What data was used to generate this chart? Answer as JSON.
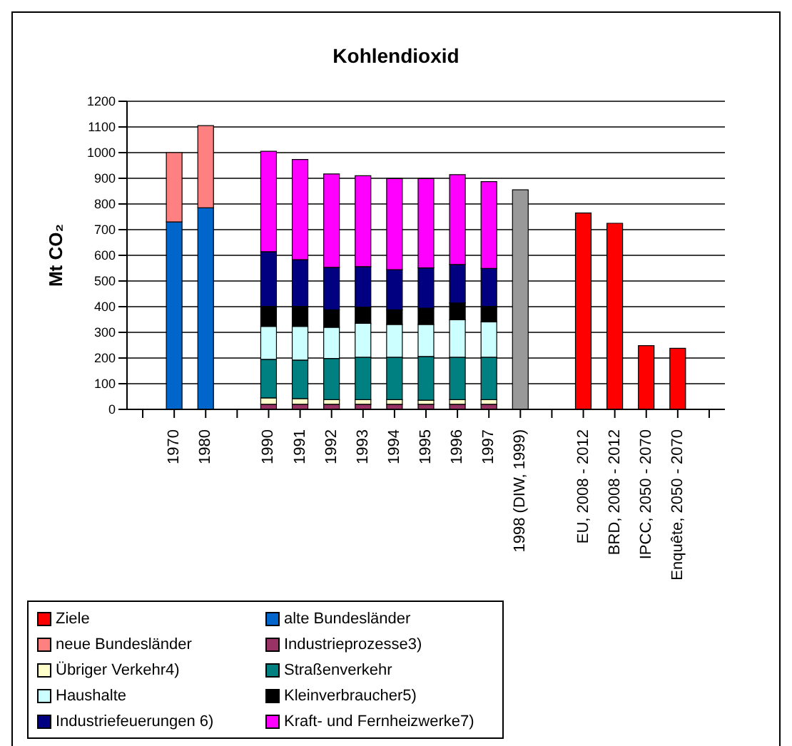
{
  "chart_data": {
    "type": "bar",
    "title": "Kohlendioxid",
    "ylabel": "Mt CO₂",
    "stacked": true,
    "categories": [
      null,
      "1970",
      "1980",
      null,
      "1990",
      "1991",
      "1992",
      "1993",
      "1994",
      "1995",
      "1996",
      "1997",
      "1998 (DIW, 1999)",
      null,
      "EU, 2008 - 2012",
      "BRD, 2008 - 2012",
      "IPCC, 2050 - 2070",
      "Enquête, 2050 - 2070",
      null
    ],
    "ylim": [
      0,
      1200
    ],
    "yticks": [
      0,
      100,
      200,
      300,
      400,
      500,
      600,
      700,
      800,
      900,
      1000,
      1100,
      1200
    ],
    "grid": "y",
    "legend": "bottom left",
    "series": [
      {
        "name": "Ziele",
        "color": "#ff0000",
        "values": [
          null,
          null,
          null,
          null,
          null,
          null,
          null,
          null,
          null,
          null,
          null,
          null,
          null,
          null,
          765,
          725,
          248,
          238,
          null
        ]
      },
      {
        "name": "alte Bundesländer",
        "color": "#0066cc",
        "values": [
          null,
          730,
          785,
          null,
          null,
          null,
          null,
          null,
          null,
          null,
          null,
          null,
          null,
          null,
          null,
          null,
          null,
          null,
          null
        ]
      },
      {
        "name": "neue Bundesländer",
        "color": "#ff8080",
        "values": [
          null,
          270,
          320,
          null,
          null,
          null,
          null,
          null,
          null,
          null,
          null,
          null,
          null,
          null,
          null,
          null,
          null,
          null,
          null
        ]
      },
      {
        "name": "Industrieprozesse3)",
        "color": "#993366",
        "values": [
          null,
          null,
          null,
          null,
          20,
          20,
          20,
          20,
          20,
          20,
          20,
          20,
          null,
          null,
          null,
          null,
          null,
          null,
          null
        ]
      },
      {
        "name": "Übriger Verkehr4)",
        "color": "#ffffcc",
        "values": [
          null,
          null,
          null,
          null,
          25,
          22,
          18,
          18,
          18,
          16,
          18,
          18,
          null,
          null,
          null,
          null,
          null,
          null,
          null
        ]
      },
      {
        "name": "Straßenverkehr",
        "color": "#008080",
        "values": [
          null,
          null,
          null,
          null,
          150,
          150,
          160,
          165,
          165,
          170,
          165,
          165,
          null,
          null,
          null,
          null,
          null,
          null,
          null
        ]
      },
      {
        "name": "Haushalte",
        "color": "#ccffff",
        "values": [
          null,
          null,
          null,
          null,
          128,
          131,
          122,
          132,
          128,
          125,
          146,
          138,
          null,
          null,
          null,
          null,
          null,
          null,
          null
        ]
      },
      {
        "name": "Kleinverbraucher5)",
        "color": "#000000",
        "values": [
          null,
          null,
          null,
          null,
          78,
          78,
          68,
          63,
          57,
          63,
          65,
          60,
          null,
          null,
          null,
          null,
          null,
          null,
          null
        ]
      },
      {
        "name": "Industriefeuerungen 6)",
        "color": "#000080",
        "values": [
          null,
          null,
          null,
          null,
          213,
          182,
          165,
          158,
          156,
          157,
          150,
          148,
          null,
          null,
          null,
          null,
          null,
          null,
          null
        ]
      },
      {
        "name": "Kraft- und Fernheizwerke7)",
        "color": "#ff00ff",
        "values": [
          null,
          null,
          null,
          null,
          391,
          390,
          364,
          354,
          355,
          348,
          350,
          338,
          null,
          null,
          null,
          null,
          null,
          null,
          null
        ]
      },
      {
        "color": "#999999",
        "values": [
          null,
          null,
          null,
          null,
          null,
          null,
          null,
          null,
          null,
          null,
          null,
          null,
          855,
          null,
          null,
          null,
          null,
          null,
          null
        ]
      }
    ]
  }
}
